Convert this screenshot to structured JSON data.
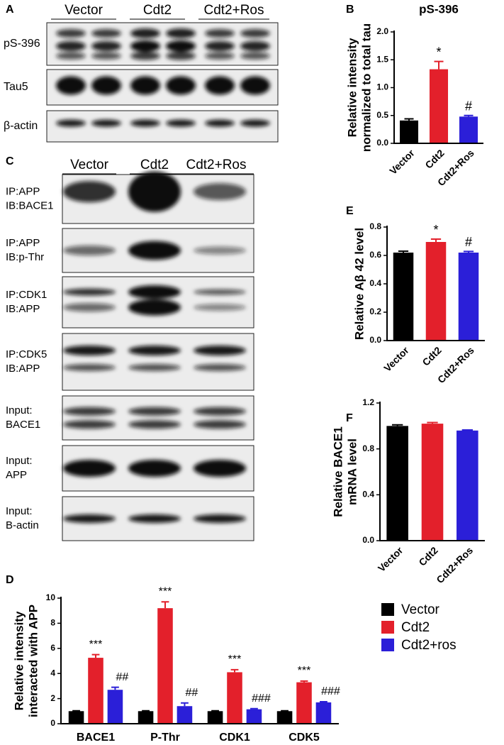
{
  "blots": [
    {
      "panel": "A",
      "groups": [
        "Vector",
        "Cdt2",
        "Cdt2+Ros"
      ],
      "rows": [
        [
          "pS-396"
        ],
        [
          "Tau5"
        ],
        [
          "β-actin"
        ]
      ]
    },
    {
      "panel": "C",
      "groups": [
        "Vector",
        "Cdt2",
        "Cdt2+Ros"
      ],
      "rows": [
        [
          "IP:APP",
          "IB:BACE1"
        ],
        [
          "IP:APP",
          "IB:p-Thr"
        ],
        [
          "IP:CDK1",
          "IB:APP"
        ],
        [
          "IP:CDK5",
          "IB:APP"
        ],
        [
          "Input:",
          "BACE1"
        ],
        [
          "Input:",
          "APP"
        ],
        [
          "Input:",
          "B-actin"
        ]
      ]
    }
  ],
  "chart_data": [
    {
      "type": "bar",
      "panel": "B",
      "title": "pS-396",
      "ylabel": [
        "Relative intensity",
        "normalized to total tau"
      ],
      "categories": [
        "Vector",
        "Cdt2",
        "Cdt2+Ros"
      ],
      "values": [
        0.41,
        1.33,
        0.48
      ],
      "errors": [
        0.03,
        0.14,
        0.02
      ],
      "colors": [
        "#000000",
        "#e3202b",
        "#2b1fd8"
      ],
      "annotations": [
        null,
        "*",
        "#"
      ],
      "ylim": [
        0,
        2
      ],
      "yticks": [
        {
          "value": 0,
          "label": "0.0"
        },
        0.5,
        {
          "value": 1,
          "label": "1.0"
        },
        1.5,
        {
          "value": 2,
          "label": "2.0"
        }
      ]
    },
    {
      "type": "bar",
      "panel": "E",
      "ylabel": [
        "Relative Aβ 42 level"
      ],
      "categories": [
        "Vector",
        "Cdt2",
        "Cdt2+Ros"
      ],
      "values": [
        0.62,
        0.695,
        0.62
      ],
      "errors": [
        0.01,
        0.02,
        0.008
      ],
      "colors": [
        "#000000",
        "#e3202b",
        "#2b1fd8"
      ],
      "annotations": [
        null,
        "*",
        "#"
      ],
      "ylim": [
        0,
        0.8
      ],
      "yticks": [
        {
          "value": 0,
          "label": "0.0"
        },
        0.2,
        0.4,
        0.6,
        0.8
      ]
    },
    {
      "type": "bar",
      "panel": "F",
      "ylabel": [
        "Relative BACE1",
        "mRNA level"
      ],
      "categories": [
        "Vector",
        "Cdt2",
        "Cdt2+Ros"
      ],
      "values": [
        1.0,
        1.02,
        0.96
      ],
      "errors": [
        0.01,
        0.01,
        0.005
      ],
      "colors": [
        "#000000",
        "#e3202b",
        "#2b1fd8"
      ],
      "ylim": [
        0,
        1.2
      ],
      "yticks": [
        {
          "value": 0,
          "label": "0.0"
        },
        0.4,
        0.8,
        1.2
      ]
    },
    {
      "type": "grouped-bar",
      "panel": "D",
      "ylabel": [
        "Relative intensity",
        "interacted with APP"
      ],
      "categories": [
        "BACE1",
        "P-Thr",
        "CDK1",
        "CDK5"
      ],
      "series": [
        {
          "name": "Vector",
          "color": "#000000",
          "values": [
            1,
            1,
            1,
            1
          ],
          "errors": [
            0.03,
            0.03,
            0.03,
            0.03
          ]
        },
        {
          "name": "Cdt2",
          "color": "#e3202b",
          "values": [
            5.25,
            9.2,
            4.1,
            3.3
          ],
          "errors": [
            0.25,
            0.5,
            0.2,
            0.1
          ],
          "annotations": [
            "***",
            "***",
            "***",
            "***"
          ]
        },
        {
          "name": "Cdt2+ros",
          "color": "#2b1fd8",
          "values": [
            2.7,
            1.4,
            1.15,
            1.7
          ],
          "errors": [
            0.2,
            0.25,
            0.05,
            0.05
          ],
          "annotations": [
            "##",
            "##",
            "###",
            "###"
          ]
        }
      ],
      "ylim": [
        0,
        10
      ],
      "yticks": [
        0,
        2,
        4,
        6,
        8,
        10
      ]
    }
  ]
}
